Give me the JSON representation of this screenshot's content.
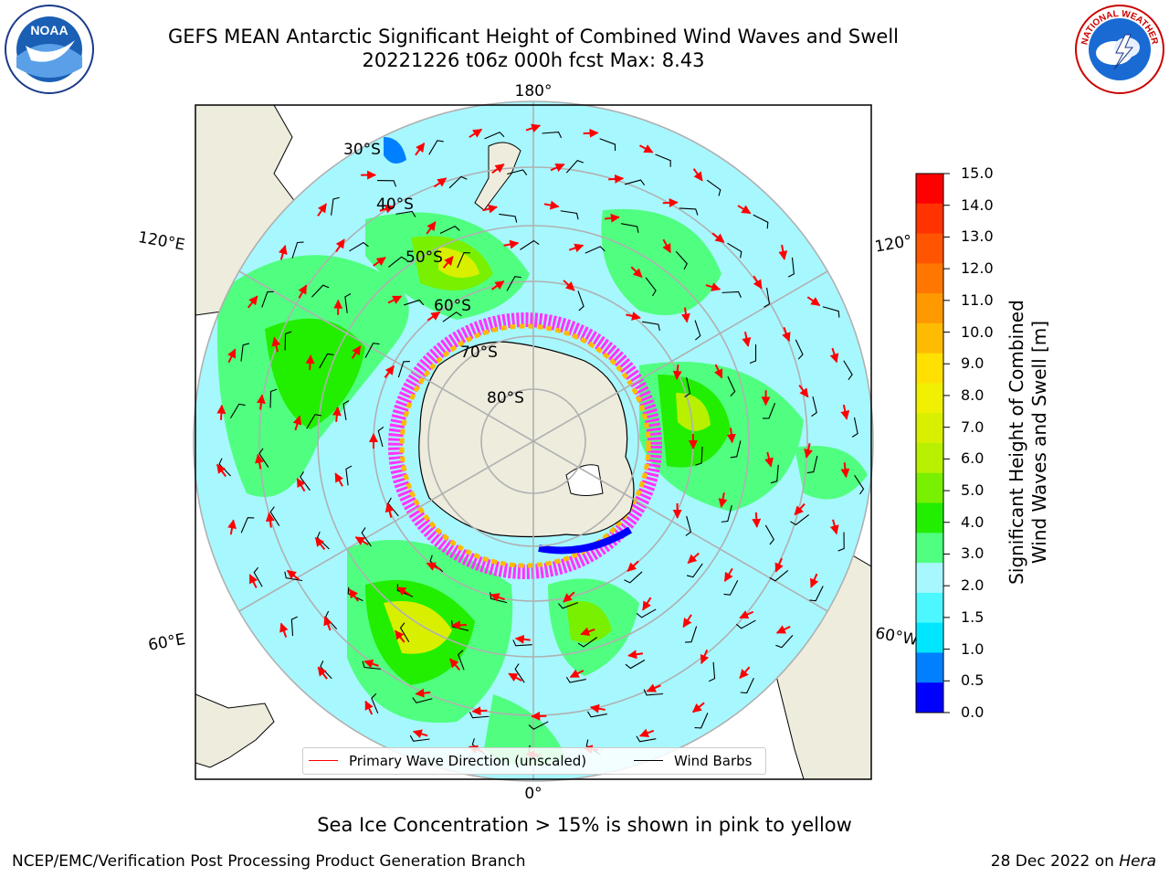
{
  "header": {
    "title_line1": "GEFS MEAN Antarctic Significant Height of Combined Wind Waves and Swell",
    "title_line2": "20221226 t06z 000h fcst   Max: 8.43"
  },
  "logos": {
    "left": {
      "icon": "noaa-logo",
      "text": "NOAA"
    },
    "right": {
      "icon": "nws-logo",
      "text": "NATIONAL WEATHER SERVICE"
    }
  },
  "map": {
    "projection": "south-polar-stereographic",
    "lon_labels": {
      "top": "180°",
      "bottom": "0°",
      "left_upper": "120°E",
      "left_lower": "60°E",
      "right_upper": "120°",
      "right_lower": "60°W"
    },
    "lat_labels": [
      "30°S",
      "40°S",
      "50°S",
      "60°S",
      "70°S",
      "80°S"
    ],
    "colors": {
      "land": "#eeecdd",
      "ocean_low": "#a7f7ff",
      "ocean_mid": "#50ff50",
      "ocean_high": "#c8f000",
      "wave_arrow": "#ff0000",
      "wind_barb": "#000000",
      "sea_ice": "#ff33ff"
    }
  },
  "colorbar": {
    "ticks": [
      "15.0",
      "14.0",
      "13.0",
      "12.0",
      "11.0",
      "10.0",
      "9.0",
      "8.0",
      "7.0",
      "6.0",
      "5.0",
      "4.0",
      "3.0",
      "2.0",
      "1.5",
      "1.0",
      "0.5",
      "0.0"
    ],
    "colors": [
      "#ff0000",
      "#ff3300",
      "#ff5500",
      "#ff7700",
      "#ff9900",
      "#ffbb00",
      "#ffe000",
      "#f0f000",
      "#d8f000",
      "#b8f000",
      "#78f000",
      "#22ee00",
      "#50ff80",
      "#a7f7ff",
      "#4cf7ff",
      "#00e6ff",
      "#0080ff",
      "#0000ff"
    ],
    "label_line1": "Significant Height of Combined",
    "label_line2": "Wind Waves and Swell [m]"
  },
  "legend": {
    "primary_wave": "Primary Wave Direction (unscaled)",
    "wind_barbs": "Wind Barbs",
    "primary_wave_color": "#ff0000",
    "wind_barbs_color": "#000000"
  },
  "notes": {
    "sea_ice": "Sea Ice Concentration > 15% is shown in pink to yellow"
  },
  "footer": {
    "left": "NCEP/EMC/Verification Post Processing Product Generation Branch",
    "right_date": "28 Dec 2022 on ",
    "right_host": "Hera"
  }
}
